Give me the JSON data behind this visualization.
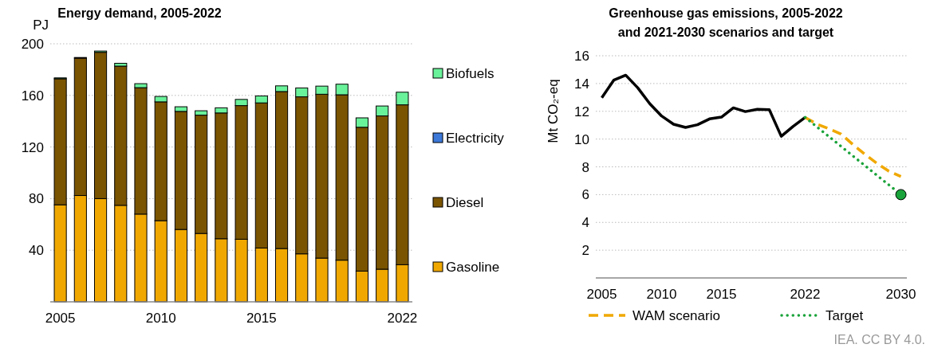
{
  "chart_data": [
    {
      "type": "bar",
      "title": "Energy demand, 2005-2022",
      "ylabel": "PJ",
      "stacked": true,
      "grid": "y",
      "legend": "right",
      "ylim": [
        0,
        200
      ],
      "yticks": [
        40,
        80,
        120,
        160,
        200
      ],
      "categories": [
        "2005",
        null,
        null,
        null,
        null,
        "2010",
        null,
        null,
        null,
        null,
        "2015",
        null,
        null,
        null,
        null,
        null,
        null,
        "2022"
      ],
      "series": [
        {
          "name": "Gasoline",
          "color": "#f0a800",
          "values": [
            75.2,
            82.4,
            80,
            74.8,
            68,
            62.9,
            56.1,
            53,
            48.9,
            48.5,
            41.7,
            41.3,
            37.2,
            33.9,
            32.3,
            23.8,
            25.3,
            28.8
          ]
        },
        {
          "name": "Diesel",
          "color": "#7a5400",
          "values": [
            97.7,
            106.5,
            113.4,
            107.9,
            98,
            92.1,
            91.5,
            91.7,
            97.5,
            103.6,
            112.5,
            121.7,
            121.7,
            127,
            128.2,
            111.5,
            118.8,
            123.9
          ]
        },
        {
          "name": "Electricity",
          "color": "#3c78d8",
          "values": [
            null,
            null,
            null,
            null,
            null,
            null,
            null,
            null,
            null,
            null,
            null,
            null,
            null,
            null,
            null,
            null,
            null,
            null
          ]
        },
        {
          "name": "Biofuels",
          "color": "#6af29a",
          "values": [
            0.7,
            0.5,
            1,
            2.2,
            3.1,
            4.2,
            3.6,
            3.4,
            4,
            4.8,
            5.4,
            4.4,
            6.9,
            6.3,
            8.2,
            7.3,
            7.7,
            9.8
          ]
        }
      ]
    },
    {
      "type": "line",
      "title": "Greenhouse gas emissions, 2005-2022\nand 2021-2030 scenarios and target",
      "ylabel": "Mt CO₂-eq",
      "grid": "y",
      "legend": "bottom",
      "xlim": [
        2004.5,
        2030.5
      ],
      "xticks": [
        2005,
        2010,
        2015,
        2022,
        2030
      ],
      "ylim": [
        0,
        16
      ],
      "yticks": [
        2,
        4,
        6,
        8,
        10,
        12,
        14,
        16
      ],
      "annotations": [
        "IEA. CC BY 4.0."
      ],
      "series": [
        {
          "color": "#000000",
          "line_style": "solid",
          "x": [
            2005,
            2006,
            2007,
            2008,
            2009,
            2010,
            2011,
            2012,
            2013,
            2014,
            2015,
            2016,
            2017,
            2018,
            2019,
            2020,
            2021,
            2022
          ],
          "values": [
            12.98,
            14.24,
            14.6,
            13.7,
            12.56,
            11.66,
            11.07,
            10.84,
            11.03,
            11.45,
            11.58,
            12.25,
            11.98,
            12.14,
            12.12,
            10.2,
            10.92,
            11.56
          ]
        },
        {
          "name": "WAM scenario",
          "color": "#f0a800",
          "line_style": "dashed",
          "x": [
            2022,
            2023,
            2024,
            2025,
            2026,
            2027,
            2028,
            2029,
            2030
          ],
          "values": [
            11.56,
            11.07,
            10.74,
            10.36,
            9.6,
            8.9,
            8.25,
            7.68,
            7.3
          ]
        },
        {
          "name": "Target",
          "color": "#1aa33a",
          "line_style": "dotted",
          "x": [
            2022,
            2030
          ],
          "values": [
            11.56,
            6
          ]
        },
        {
          "type": "scatter",
          "color": "#1aa33a",
          "marker": "circle",
          "x": [
            2030
          ],
          "values": [
            6
          ]
        }
      ]
    }
  ]
}
